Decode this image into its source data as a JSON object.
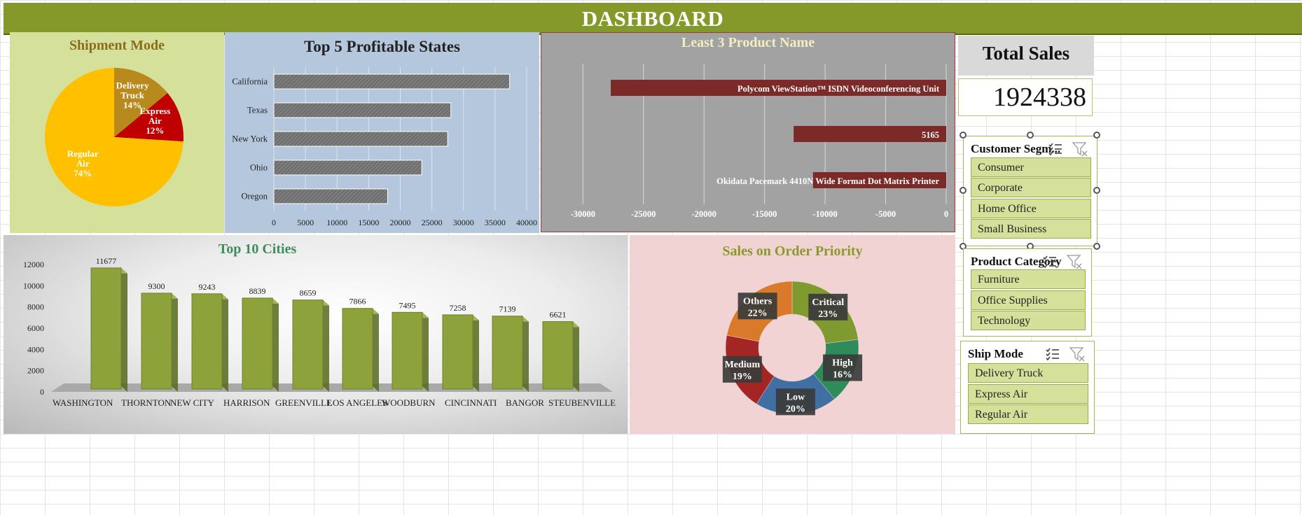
{
  "header": {
    "title": "DASHBOARD"
  },
  "colors": {
    "header": "#85992a",
    "olive_bar": "#8da23a",
    "maroon": "#7b2a28",
    "gray_bar": "#7a7a7a"
  },
  "total_sales": {
    "label": "Total Sales",
    "value": "1924338"
  },
  "slicers": [
    {
      "title": "Customer Segm...",
      "items": [
        "Consumer",
        "Corporate",
        "Home Office",
        "Small Business"
      ]
    },
    {
      "title": "Product Category",
      "items": [
        "Furniture",
        "Office Supplies",
        "Technology"
      ]
    },
    {
      "title": "Ship Mode",
      "items": [
        "Delivery Truck",
        "Express Air",
        "Regular Air"
      ]
    }
  ],
  "chart_data": [
    {
      "type": "pie",
      "title": "Shipment Mode",
      "slices": [
        {
          "label": "Delivery Truck",
          "lines": [
            "Delivery",
            "Truck"
          ],
          "pct_text": "14%",
          "value": 14,
          "color": "#b88a1e"
        },
        {
          "label": "Express Air",
          "lines": [
            "Express",
            "Air"
          ],
          "pct_text": "12%",
          "value": 12,
          "color": "#c00000"
        },
        {
          "label": "Regular Air",
          "lines": [
            "Regular",
            "Air"
          ],
          "pct_text": "74%",
          "value": 74,
          "color": "#ffc000"
        }
      ]
    },
    {
      "type": "bar",
      "orientation": "horizontal",
      "title": "Top 5 Profitable States",
      "categories": [
        "California",
        "Texas",
        "New York",
        "Ohio",
        "Oregon"
      ],
      "values": [
        37300,
        28000,
        27500,
        23400,
        18000
      ],
      "xlim": [
        0,
        40000
      ],
      "ticks": [
        0,
        5000,
        10000,
        15000,
        20000,
        25000,
        30000,
        35000,
        40000
      ],
      "grid": true
    },
    {
      "type": "bar",
      "orientation": "horizontal",
      "title": "Least 3 Product Name",
      "categories": [
        "Polycom ViewStation™ ISDN Videoconferencing Unit",
        "5165",
        "Okidata Pacemark 4410N Wide Format Dot Matrix Printer"
      ],
      "values": [
        -27700,
        -12600,
        -11000
      ],
      "xlim": [
        -31000,
        0
      ],
      "ticks": [
        -30000,
        -25000,
        -20000,
        -15000,
        -10000,
        -5000,
        0
      ],
      "grid": true
    },
    {
      "type": "bar",
      "title": "Top 10 Cities",
      "categories": [
        "WASHINGTON",
        "THORNTON",
        "NEW CITY",
        "HARRISON",
        "GREENVILLE",
        "LOS ANGELES",
        "WOODBURN",
        "CINCINNATI",
        "BANGOR",
        "STEUBENVILLE"
      ],
      "values": [
        11677,
        9300,
        9243,
        8839,
        8659,
        7866,
        7495,
        7258,
        7139,
        6621
      ],
      "ylim": [
        0,
        12000
      ],
      "ticks": [
        0,
        2000,
        4000,
        6000,
        8000,
        10000,
        12000
      ],
      "style": "3d-column"
    },
    {
      "type": "pie",
      "variant": "doughnut",
      "title": "Sales on Order Priority",
      "slices": [
        {
          "label": "Critical",
          "pct_text": "23%",
          "value": 23,
          "color": "#7f9a2f"
        },
        {
          "label": "High",
          "pct_text": "16%",
          "value": 16,
          "color": "#2e8b5a"
        },
        {
          "label": "Low",
          "pct_text": "20%",
          "value": 20,
          "color": "#3f6fa3"
        },
        {
          "label": "Medium",
          "pct_text": "19%",
          "value": 19,
          "color": "#a42624"
        },
        {
          "label": "Others",
          "pct_text": "22%",
          "value": 22,
          "color": "#d97a2b"
        }
      ]
    }
  ]
}
